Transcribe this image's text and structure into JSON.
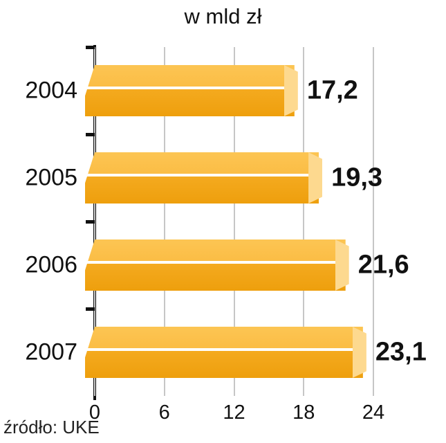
{
  "chart_data": {
    "type": "bar",
    "orientation": "horizontal",
    "title": "w mld zł",
    "categories": [
      "2004",
      "2005",
      "2006",
      "2007"
    ],
    "values": [
      17.2,
      19.3,
      21.6,
      23.1
    ],
    "value_labels": [
      "17,2",
      "19,3",
      "21,6",
      "23,1"
    ],
    "xlim": [
      0,
      24
    ],
    "xticks": [
      0,
      6,
      12,
      18,
      24
    ],
    "grid": true,
    "legend": "none",
    "bar_color_top": "#fbc04e",
    "bar_color_bottom": "#efa20e",
    "bar_cap_color": "#fdd98f",
    "gridline_color": "#c6c6c6",
    "axis_color": "#111111"
  },
  "source": "źródło: UKE"
}
